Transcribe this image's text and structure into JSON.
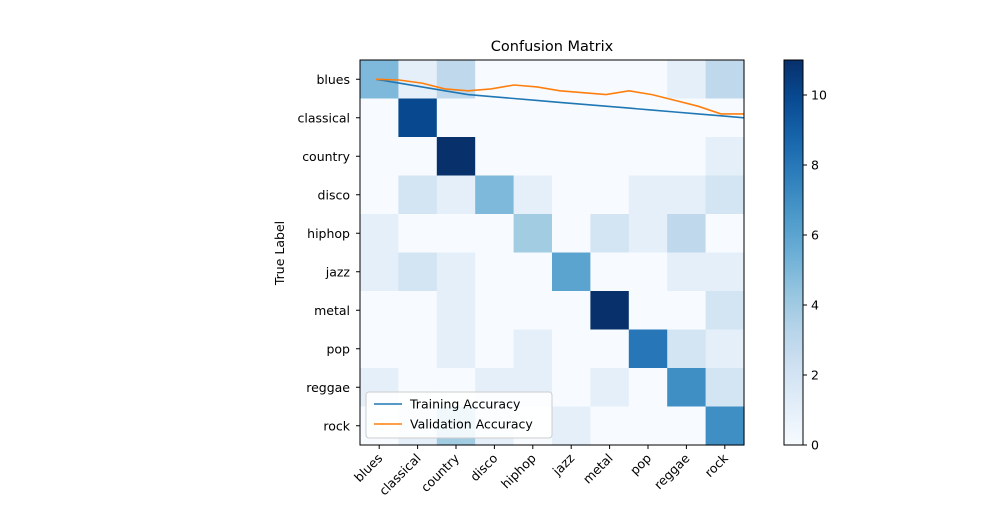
{
  "chart_data": {
    "type": "heatmap",
    "title": "Confusion Matrix",
    "xlabel": "",
    "ylabel": "True Label",
    "x_categories": [
      "blues",
      "classical",
      "country",
      "disco",
      "hiphop",
      "jazz",
      "metal",
      "pop",
      "reggae",
      "rock"
    ],
    "y_categories": [
      "blues",
      "classical",
      "country",
      "disco",
      "hiphop",
      "jazz",
      "metal",
      "pop",
      "reggae",
      "rock"
    ],
    "matrix": [
      [
        5,
        1,
        3,
        0,
        0,
        0,
        0,
        0,
        1,
        3
      ],
      [
        0,
        10,
        0,
        0,
        0,
        0,
        0,
        0,
        0,
        0
      ],
      [
        0,
        0,
        11,
        0,
        0,
        0,
        0,
        0,
        0,
        1
      ],
      [
        0,
        2,
        1,
        5,
        1,
        0,
        0,
        1,
        1,
        2
      ],
      [
        1,
        0,
        0,
        0,
        4,
        0,
        2,
        1,
        3,
        0
      ],
      [
        1,
        2,
        1,
        0,
        0,
        6,
        0,
        0,
        1,
        1
      ],
      [
        0,
        0,
        1,
        0,
        0,
        0,
        11,
        0,
        0,
        2
      ],
      [
        0,
        0,
        1,
        0,
        1,
        0,
        0,
        8,
        2,
        1
      ],
      [
        1,
        0,
        0,
        1,
        1,
        0,
        1,
        0,
        7,
        2
      ],
      [
        0,
        1,
        4,
        1,
        0,
        1,
        0,
        0,
        0,
        7
      ]
    ],
    "colorbar": {
      "min": 0,
      "max": 11,
      "ticks": [
        0,
        2,
        4,
        6,
        8,
        10
      ],
      "colormap": "Blues"
    },
    "overlay": {
      "series": [
        {
          "name": "Training Accuracy",
          "color": "#1f77b4",
          "values": [
            0.95,
            0.94,
            0.93,
            0.92,
            0.91,
            0.905,
            0.9,
            0.895,
            0.89,
            0.885,
            0.88,
            0.875,
            0.87,
            0.865,
            0.86,
            0.855,
            0.85
          ]
        },
        {
          "name": "Validation Accuracy",
          "color": "#ff7f0e",
          "values": [
            0.95,
            0.948,
            0.94,
            0.925,
            0.92,
            0.925,
            0.935,
            0.93,
            0.92,
            0.915,
            0.91,
            0.92,
            0.91,
            0.895,
            0.88,
            0.86,
            0.86
          ]
        }
      ]
    },
    "legend": {
      "placement": "lower-left"
    }
  }
}
